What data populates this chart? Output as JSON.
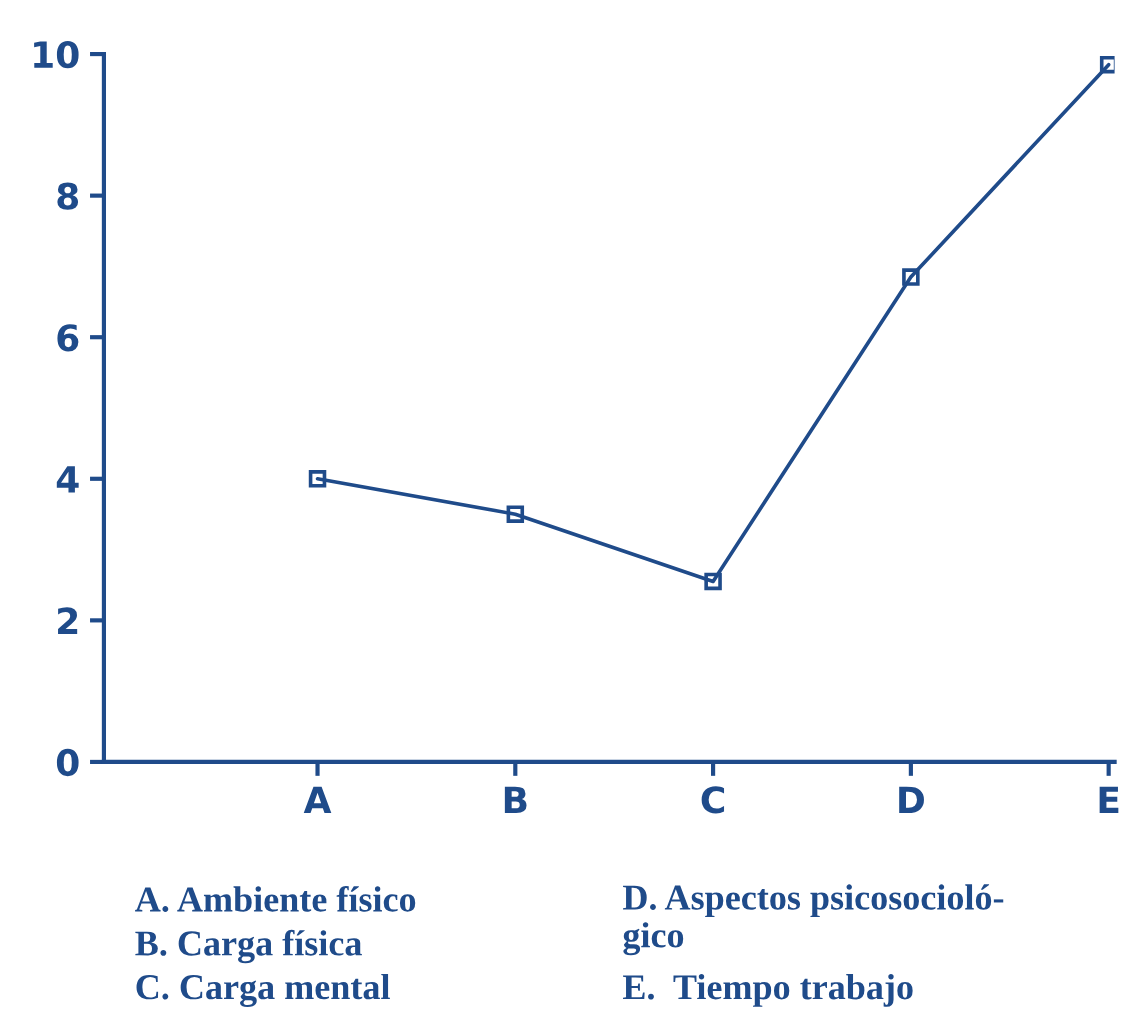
{
  "chart_data": {
    "type": "line",
    "categories": [
      "A",
      "B",
      "C",
      "D",
      "E"
    ],
    "series": [
      {
        "color": "#1f4b8a",
        "values": [
          4.0,
          3.5,
          2.55,
          6.85,
          9.85
        ]
      }
    ],
    "ylim": [
      0,
      10
    ],
    "yticks": [
      0,
      2,
      4,
      6,
      8,
      10
    ],
    "marker": "square",
    "line_style": "solid",
    "grid": false,
    "legend": false,
    "annotations": [
      "A. Ambiente físico",
      "B. Carga física",
      "C. Carga mental",
      "D. Aspectos psicosocioló-\ngico",
      "E.  Tiempo trabajo"
    ]
  }
}
